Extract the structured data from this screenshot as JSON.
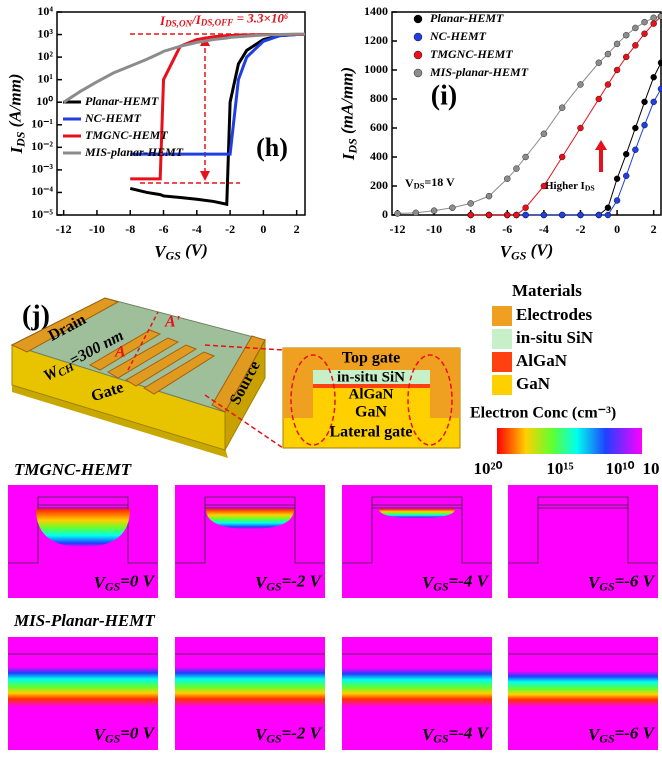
{
  "chart_data": [
    {
      "type": "line",
      "panel": "(h)",
      "yscale": "log",
      "y_label": [
        "I",
        "DS",
        " (A/mm)"
      ],
      "x_label": [
        "V",
        "GS",
        " (V)"
      ],
      "annotation": [
        "I",
        "DS,ON",
        "/I",
        "DS,OFF",
        " = 3.3×10⁶"
      ],
      "legend": "center left",
      "x": [
        -12,
        -11,
        -10,
        -9,
        -8,
        -7,
        -6.2,
        -6,
        -5,
        -4,
        -3,
        -2.2,
        -2,
        -1.5,
        -1,
        0,
        1,
        2,
        2.5
      ],
      "series": [
        {
          "name": "Planar-HEMT",
          "color": "#000000",
          "values": [
            null,
            null,
            null,
            null,
            0.00015,
            0.0001,
            8e-05,
            7e-05,
            6e-05,
            5e-05,
            4e-05,
            3e-05,
            1,
            50,
            200,
            600,
            900,
            1000,
            1000
          ]
        },
        {
          "name": "NC-HEMT",
          "color": "#1f3fe0",
          "values": [
            null,
            null,
            null,
            null,
            0.005,
            0.005,
            0.005,
            0.005,
            0.005,
            0.005,
            0.005,
            0.005,
            0.005,
            10,
            100,
            500,
            900,
            1000,
            1000
          ]
        },
        {
          "name": "TMGNC-HEMT",
          "color": "#e8101a",
          "values": [
            null,
            null,
            null,
            null,
            0.0004,
            0.0004,
            0.0004,
            10,
            300,
            600,
            800,
            900,
            900,
            950,
            950,
            1000,
            1000,
            1000,
            1000
          ]
        },
        {
          "name": "MIS-planar-HEMT",
          "color": "#8c8c8c",
          "values": [
            1,
            3,
            8,
            20,
            40,
            80,
            150,
            180,
            300,
            450,
            600,
            700,
            750,
            800,
            850,
            950,
            1000,
            1050,
            1050
          ]
        }
      ],
      "xlim": [
        -12.4,
        2.5
      ],
      "xticks": [
        -12,
        -10,
        -8,
        -6,
        -4,
        -2,
        0,
        2
      ],
      "ylim": [
        1e-05,
        10000
      ],
      "yticks": [
        {
          "value": 10000,
          "label": "10⁴"
        },
        {
          "value": 1000,
          "label": "10³"
        },
        {
          "value": 100,
          "label": "10²"
        },
        {
          "value": 10,
          "label": "10¹"
        },
        {
          "value": 1,
          "label": "10⁰"
        },
        {
          "value": 0.1,
          "label": "10⁻¹"
        },
        {
          "value": 0.01,
          "label": "10⁻²"
        },
        {
          "value": 0.001,
          "label": "10⁻³"
        },
        {
          "value": 0.0001,
          "label": "10⁻⁴"
        },
        {
          "value": 1e-05,
          "label": "10⁻⁵"
        }
      ]
    },
    {
      "type": "scatter",
      "panel": "(i)",
      "y_label": [
        "I",
        "DS",
        " (mA/mm)"
      ],
      "x_label": [
        "V",
        "GS",
        " (V)"
      ],
      "annotation": [
        "V",
        "DS",
        "=18 V"
      ],
      "arrow_text": [
        "Higher I",
        "DS"
      ],
      "legend": "upper left",
      "x": [
        -12,
        -11,
        -10,
        -9,
        -8,
        -7,
        -6,
        -5.5,
        -5,
        -4,
        -3,
        -2,
        -1,
        -0.5,
        0,
        0.5,
        1,
        1.5,
        2,
        2.4
      ],
      "series": [
        {
          "name": "Planar-HEMT",
          "color": "#000000",
          "values": [
            null,
            null,
            null,
            null,
            0,
            0,
            0,
            0,
            0,
            0,
            0,
            0,
            0,
            50,
            250,
            420,
            600,
            780,
            950,
            1050
          ]
        },
        {
          "name": "NC-HEMT",
          "color": "#1f3fe0",
          "values": [
            null,
            null,
            null,
            null,
            0,
            0,
            0,
            0,
            0,
            0,
            0,
            0,
            0,
            0,
            100,
            270,
            450,
            620,
            780,
            870
          ]
        },
        {
          "name": "TMGNC-HEMT",
          "color": "#e8101a",
          "values": [
            null,
            null,
            null,
            null,
            0,
            0,
            0,
            0,
            50,
            200,
            400,
            600,
            800,
            900,
            1000,
            1090,
            1170,
            1250,
            1320,
            1370
          ]
        },
        {
          "name": "MIS-planar-HEMT",
          "color": "#8c8c8c",
          "values": [
            10,
            15,
            30,
            50,
            80,
            130,
            250,
            320,
            400,
            560,
            740,
            900,
            1050,
            1110,
            1180,
            1240,
            1290,
            1330,
            1360,
            1370
          ]
        }
      ],
      "xlim": [
        -12.3,
        2.4
      ],
      "xticks": [
        -12,
        -10,
        -8,
        -6,
        -4,
        -2,
        0,
        2
      ],
      "ylim": [
        0,
        1400
      ],
      "yticks": [
        0,
        200,
        400,
        600,
        800,
        1000,
        1200,
        1400
      ]
    }
  ],
  "figure": {
    "panel": "(j)",
    "device": {
      "drain": "Drain",
      "width": [
        "W",
        "CH",
        "=300 nm"
      ],
      "gate": "Gate",
      "source": "Source",
      "cut_a": "A",
      "cut_b": "A'"
    },
    "cross_section": [
      "Top gate",
      "in-situ SiN",
      "AlGaN",
      "GaN",
      "Lateral gate"
    ],
    "materials": {
      "title": "Materials",
      "items": [
        "Electrodes",
        "in-situ SiN",
        "AlGaN",
        "GaN"
      ]
    },
    "colorbar": {
      "title": "Electron Conc (cm⁻³)",
      "labels": [
        "10²⁰",
        "10¹⁵",
        "10¹⁰",
        "10"
      ]
    },
    "rows": [
      {
        "title": "TMGNC-HEMT",
        "panels": [
          [
            "V",
            "GS",
            "=0 V"
          ],
          [
            "V",
            "GS",
            "=-2 V"
          ],
          [
            "V",
            "GS",
            "=-4 V"
          ],
          [
            "V",
            "GS",
            "=-6 V"
          ]
        ]
      },
      {
        "title": "MIS-Planar-HEMT",
        "panels": [
          [
            "V",
            "GS",
            "=0 V"
          ],
          [
            "V",
            "GS",
            "=-2 V"
          ],
          [
            "V",
            "GS",
            "=-4 V"
          ],
          [
            "V",
            "GS",
            "=-6 V"
          ]
        ]
      }
    ]
  }
}
